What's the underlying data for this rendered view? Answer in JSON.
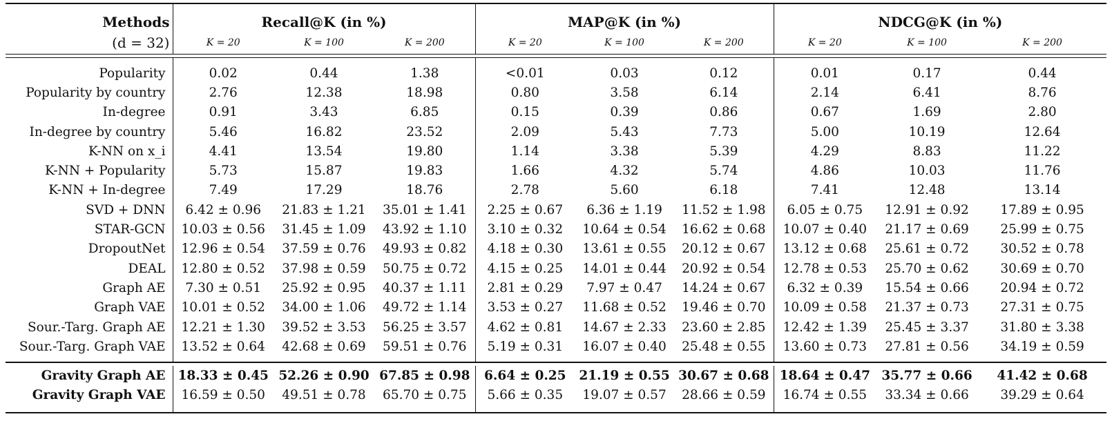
{
  "header": {
    "methods_label": "Methods",
    "dim_label": "(d = 32)",
    "groups": [
      {
        "label": "Recall@K (in %)",
        "ks": [
          "K = 20",
          "K = 100",
          "K = 200"
        ]
      },
      {
        "label": "MAP@K (in %)",
        "ks": [
          "K = 20",
          "K = 100",
          "K = 200"
        ]
      },
      {
        "label": "NDCG@K (in %)",
        "ks": [
          "K = 20",
          "K = 100",
          "K = 200"
        ]
      }
    ]
  },
  "rows": [
    {
      "name": "Popularity",
      "values": [
        "0.02",
        "0.44",
        "1.38",
        "<0.01",
        "0.03",
        "0.12",
        "0.01",
        "0.17",
        "0.44"
      ]
    },
    {
      "name": "Popularity by country",
      "values": [
        "2.76",
        "12.38",
        "18.98",
        "0.80",
        "3.58",
        "6.14",
        "2.14",
        "6.41",
        "8.76"
      ]
    },
    {
      "name": "In-degree",
      "values": [
        "0.91",
        "3.43",
        "6.85",
        "0.15",
        "0.39",
        "0.86",
        "0.67",
        "1.69",
        "2.80"
      ]
    },
    {
      "name": "In-degree by country",
      "values": [
        "5.46",
        "16.82",
        "23.52",
        "2.09",
        "5.43",
        "7.73",
        "5.00",
        "10.19",
        "12.64"
      ]
    },
    {
      "name": "K-NN on x_i",
      "values": [
        "4.41",
        "13.54",
        "19.80",
        "1.14",
        "3.38",
        "5.39",
        "4.29",
        "8.83",
        "11.22"
      ]
    },
    {
      "name": "K-NN + Popularity",
      "values": [
        "5.73",
        "15.87",
        "19.83",
        "1.66",
        "4.32",
        "5.74",
        "4.86",
        "10.03",
        "11.76"
      ]
    },
    {
      "name": "K-NN + In-degree",
      "values": [
        "7.49",
        "17.29",
        "18.76",
        "2.78",
        "5.60",
        "6.18",
        "7.41",
        "12.48",
        "13.14"
      ]
    },
    {
      "name": "SVD + DNN",
      "values": [
        "6.42 ± 0.96",
        "21.83 ± 1.21",
        "35.01 ± 1.41",
        "2.25 ± 0.67",
        "6.36 ± 1.19",
        "11.52 ± 1.98",
        "6.05 ± 0.75",
        "12.91 ± 0.92",
        "17.89 ± 0.95"
      ]
    },
    {
      "name": "STAR-GCN",
      "values": [
        "10.03 ± 0.56",
        "31.45 ± 1.09",
        "43.92 ± 1.10",
        "3.10 ± 0.32",
        "10.64 ± 0.54",
        "16.62 ± 0.68",
        "10.07 ± 0.40",
        "21.17 ± 0.69",
        "25.99 ± 0.75"
      ]
    },
    {
      "name": "DropoutNet",
      "values": [
        "12.96 ± 0.54",
        "37.59 ± 0.76",
        "49.93 ± 0.82",
        "4.18 ± 0.30",
        "13.61 ± 0.55",
        "20.12 ± 0.67",
        "13.12 ± 0.68",
        "25.61 ± 0.72",
        "30.52 ± 0.78"
      ]
    },
    {
      "name": "DEAL",
      "values": [
        "12.80 ± 0.52",
        "37.98 ± 0.59",
        "50.75 ± 0.72",
        "4.15 ± 0.25",
        "14.01 ± 0.44",
        "20.92 ± 0.54",
        "12.78 ± 0.53",
        "25.70 ± 0.62",
        "30.69 ± 0.70"
      ]
    },
    {
      "name": "Graph AE",
      "values": [
        "7.30 ± 0.51",
        "25.92 ± 0.95",
        "40.37 ± 1.11",
        "2.81 ± 0.29",
        "7.97 ± 0.47",
        "14.24 ± 0.67",
        "6.32 ± 0.39",
        "15.54 ± 0.66",
        "20.94 ± 0.72"
      ]
    },
    {
      "name": "Graph VAE",
      "values": [
        "10.01 ± 0.52",
        "34.00 ± 1.06",
        "49.72 ± 1.14",
        "3.53 ± 0.27",
        "11.68 ± 0.52",
        "19.46 ± 0.70",
        "10.09 ± 0.58",
        "21.37 ± 0.73",
        "27.31 ± 0.75"
      ]
    },
    {
      "name": "Sour.-Targ. Graph AE",
      "values": [
        "12.21 ± 1.30",
        "39.52 ± 3.53",
        "56.25 ± 3.57",
        "4.62 ± 0.81",
        "14.67 ± 2.33",
        "23.60 ± 2.85",
        "12.42 ± 1.39",
        "25.45 ± 3.37",
        "31.80 ± 3.38"
      ]
    },
    {
      "name": "Sour.-Targ. Graph VAE",
      "values": [
        "13.52 ± 0.64",
        "42.68 ± 0.69",
        "59.51 ± 0.76",
        "5.19 ± 0.31",
        "16.07 ± 0.40",
        "25.48 ± 0.55",
        "13.60 ± 0.73",
        "27.81 ± 0.56",
        "34.19 ± 0.59"
      ]
    }
  ],
  "highlight_rows": [
    {
      "name": "Gravity Graph AE",
      "values": [
        "18.33 ± 0.45",
        "52.26 ± 0.90",
        "67.85 ± 0.98",
        "6.64 ± 0.25",
        "21.19 ± 0.55",
        "30.67 ± 0.68",
        "18.64 ± 0.47",
        "35.77 ± 0.66",
        "41.42 ± 0.68"
      ],
      "bold_values": true
    },
    {
      "name": "Gravity Graph VAE",
      "values": [
        "16.59 ± 0.50",
        "49.51 ± 0.78",
        "65.70 ± 0.75",
        "5.66 ± 0.35",
        "19.07 ± 0.57",
        "28.66 ± 0.59",
        "16.74 ± 0.55",
        "33.34 ± 0.66",
        "39.29 ± 0.64"
      ],
      "bold_values": false
    }
  ]
}
